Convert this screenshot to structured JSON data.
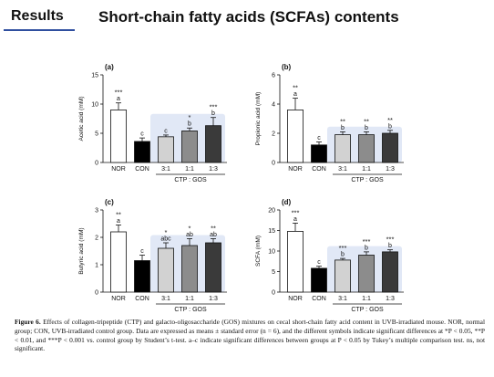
{
  "header": {
    "section_label": "Results",
    "title": "Short-chain fatty acids (SCFAs) contents"
  },
  "caption": {
    "label": "Figure 6.",
    "text": "Effects of collagen-tripeptide (CTP) and galacto-oligosaccharide (GOS) mixtures on cecal short-chain fatty acid content in UVB-irradiated mouse. NOR, normal group; CON, UVB-irradiated control group. Data are expressed as means ± standard error (n = 6), and the different symbols indicate significant differences at *P < 0.05, **P < 0.01, and ***P < 0.001 vs. control group by Student’s t-test. a–c indicate significant differences between groups at P < 0.05 by Tukey’s multiple comparison test. ns, not significant."
  },
  "chart_data": [
    {
      "type": "bar",
      "panel": "(a)",
      "ylabel": "Acetic acid (mM)",
      "ylim": [
        0,
        15
      ],
      "yticks": [
        0,
        5,
        10,
        15
      ],
      "categories": [
        "NOR",
        "CON",
        "3:1",
        "1:1",
        "1:3"
      ],
      "values": [
        9.0,
        3.6,
        4.4,
        5.4,
        6.3
      ],
      "errors": [
        1.2,
        0.6,
        0.3,
        0.5,
        1.4
      ],
      "stars": [
        "***",
        "",
        "",
        "*",
        "***"
      ],
      "letters": [
        "a",
        "c",
        "c",
        "b",
        "b"
      ],
      "colors": [
        "#ffffff",
        "#000000",
        "#d2d2d2",
        "#8c8c8c",
        "#3a3a3a"
      ],
      "group_label": "CTP : GOS"
    },
    {
      "type": "bar",
      "panel": "(b)",
      "ylabel": "Propionic acid (mM)",
      "ylim": [
        0,
        6
      ],
      "yticks": [
        0,
        2,
        4,
        6
      ],
      "categories": [
        "NOR",
        "CON",
        "3:1",
        "1:1",
        "1:3"
      ],
      "values": [
        3.6,
        1.2,
        1.9,
        1.9,
        2.0
      ],
      "errors": [
        0.8,
        0.2,
        0.2,
        0.2,
        0.2
      ],
      "stars": [
        "**",
        "",
        "**",
        "**",
        "**"
      ],
      "letters": [
        "a",
        "c",
        "b",
        "b",
        "b"
      ],
      "colors": [
        "#ffffff",
        "#000000",
        "#d2d2d2",
        "#8c8c8c",
        "#3a3a3a"
      ],
      "group_label": "CTP : GOS"
    },
    {
      "type": "bar",
      "panel": "(c)",
      "ylabel": "Butyric acid (mM)",
      "ylim": [
        0,
        3
      ],
      "yticks": [
        0,
        1,
        2,
        3
      ],
      "categories": [
        "NOR",
        "CON",
        "3:1",
        "1:1",
        "1:3"
      ],
      "values": [
        2.2,
        1.15,
        1.6,
        1.7,
        1.8
      ],
      "errors": [
        0.25,
        0.2,
        0.2,
        0.25,
        0.15
      ],
      "stars": [
        "**",
        "",
        "*",
        "*",
        "**"
      ],
      "letters": [
        "a",
        "c",
        "abc",
        "ab",
        "ab"
      ],
      "colors": [
        "#ffffff",
        "#000000",
        "#d2d2d2",
        "#8c8c8c",
        "#3a3a3a"
      ],
      "group_label": "CTP : GOS"
    },
    {
      "type": "bar",
      "panel": "(d)",
      "ylabel": "SCFA (mM)",
      "ylim": [
        0,
        20
      ],
      "yticks": [
        0,
        5,
        10,
        15,
        20
      ],
      "categories": [
        "NOR",
        "CON",
        "3:1",
        "1:1",
        "1:3"
      ],
      "values": [
        14.8,
        5.8,
        7.8,
        9.0,
        9.8
      ],
      "errors": [
        2.0,
        0.5,
        0.4,
        0.8,
        0.5
      ],
      "stars": [
        "***",
        "",
        "***",
        "***",
        "***"
      ],
      "letters": [
        "a",
        "c",
        "b",
        "b",
        "b"
      ],
      "colors": [
        "#ffffff",
        "#000000",
        "#d2d2d2",
        "#8c8c8c",
        "#3a3a3a"
      ],
      "group_label": "CTP : GOS"
    }
  ]
}
